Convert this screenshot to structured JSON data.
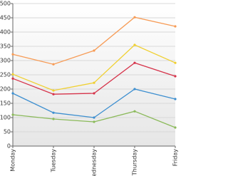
{
  "chart_data": {
    "type": "line",
    "categories": [
      "Monday",
      "Tuesday",
      "Wednesday",
      "Thursday",
      "Friday"
    ],
    "series": [
      {
        "color": "#f79b55",
        "values": [
          322,
          287,
          335,
          452,
          420
        ]
      },
      {
        "color": "#f0d030",
        "values": [
          252,
          195,
          222,
          355,
          292
        ]
      },
      {
        "color": "#d6334a",
        "values": [
          237,
          182,
          185,
          292,
          245
        ]
      },
      {
        "color": "#3d8fd0",
        "values": [
          185,
          117,
          100,
          200,
          165
        ]
      },
      {
        "color": "#8bba5a",
        "values": [
          110,
          95,
          85,
          122,
          65
        ]
      }
    ],
    "ylim": [
      0,
      500
    ],
    "yticks": [
      0,
      50,
      100,
      150,
      200,
      250,
      300,
      350,
      400,
      450,
      500
    ],
    "grid": true
  }
}
